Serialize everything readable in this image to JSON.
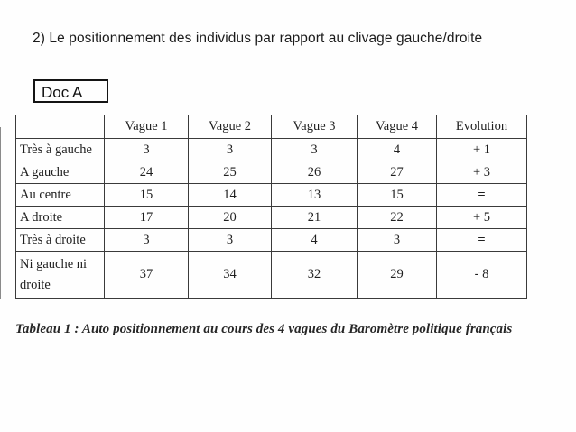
{
  "page": {
    "title": "2) Le positionnement des individus par rapport au clivage gauche/droite",
    "doc_label": "Doc A",
    "caption": "Tableau 1 : Auto positionnement au cours des 4 vagues du Baromètre politique français"
  },
  "chart_data": {
    "type": "table",
    "columns": [
      "",
      "Vague 1",
      "Vague 2",
      "Vague 3",
      "Vague 4",
      "Evolution"
    ],
    "rows": [
      {
        "label": "Très à gauche",
        "values": [
          "3",
          "3",
          "3",
          "4",
          "+ 1"
        ]
      },
      {
        "label": "A gauche",
        "values": [
          "24",
          "25",
          "26",
          "27",
          "+ 3"
        ]
      },
      {
        "label": "Au centre",
        "values": [
          "15",
          "14",
          "13",
          "15",
          "="
        ]
      },
      {
        "label": "A droite",
        "values": [
          "17",
          "20",
          "21",
          "22",
          "+ 5"
        ]
      },
      {
        "label": "Très à droite",
        "values": [
          "3",
          "3",
          "4",
          "3",
          "="
        ]
      },
      {
        "label": "Ni gauche ni droite",
        "values": [
          "37",
          "34",
          "32",
          "29",
          "- 8"
        ]
      }
    ],
    "title": "Tableau 1 : Auto positionnement au cours des 4 vagues du Baromètre politique français",
    "ink_color": "#1f1f1f",
    "border_color": "#3a3a3a"
  }
}
